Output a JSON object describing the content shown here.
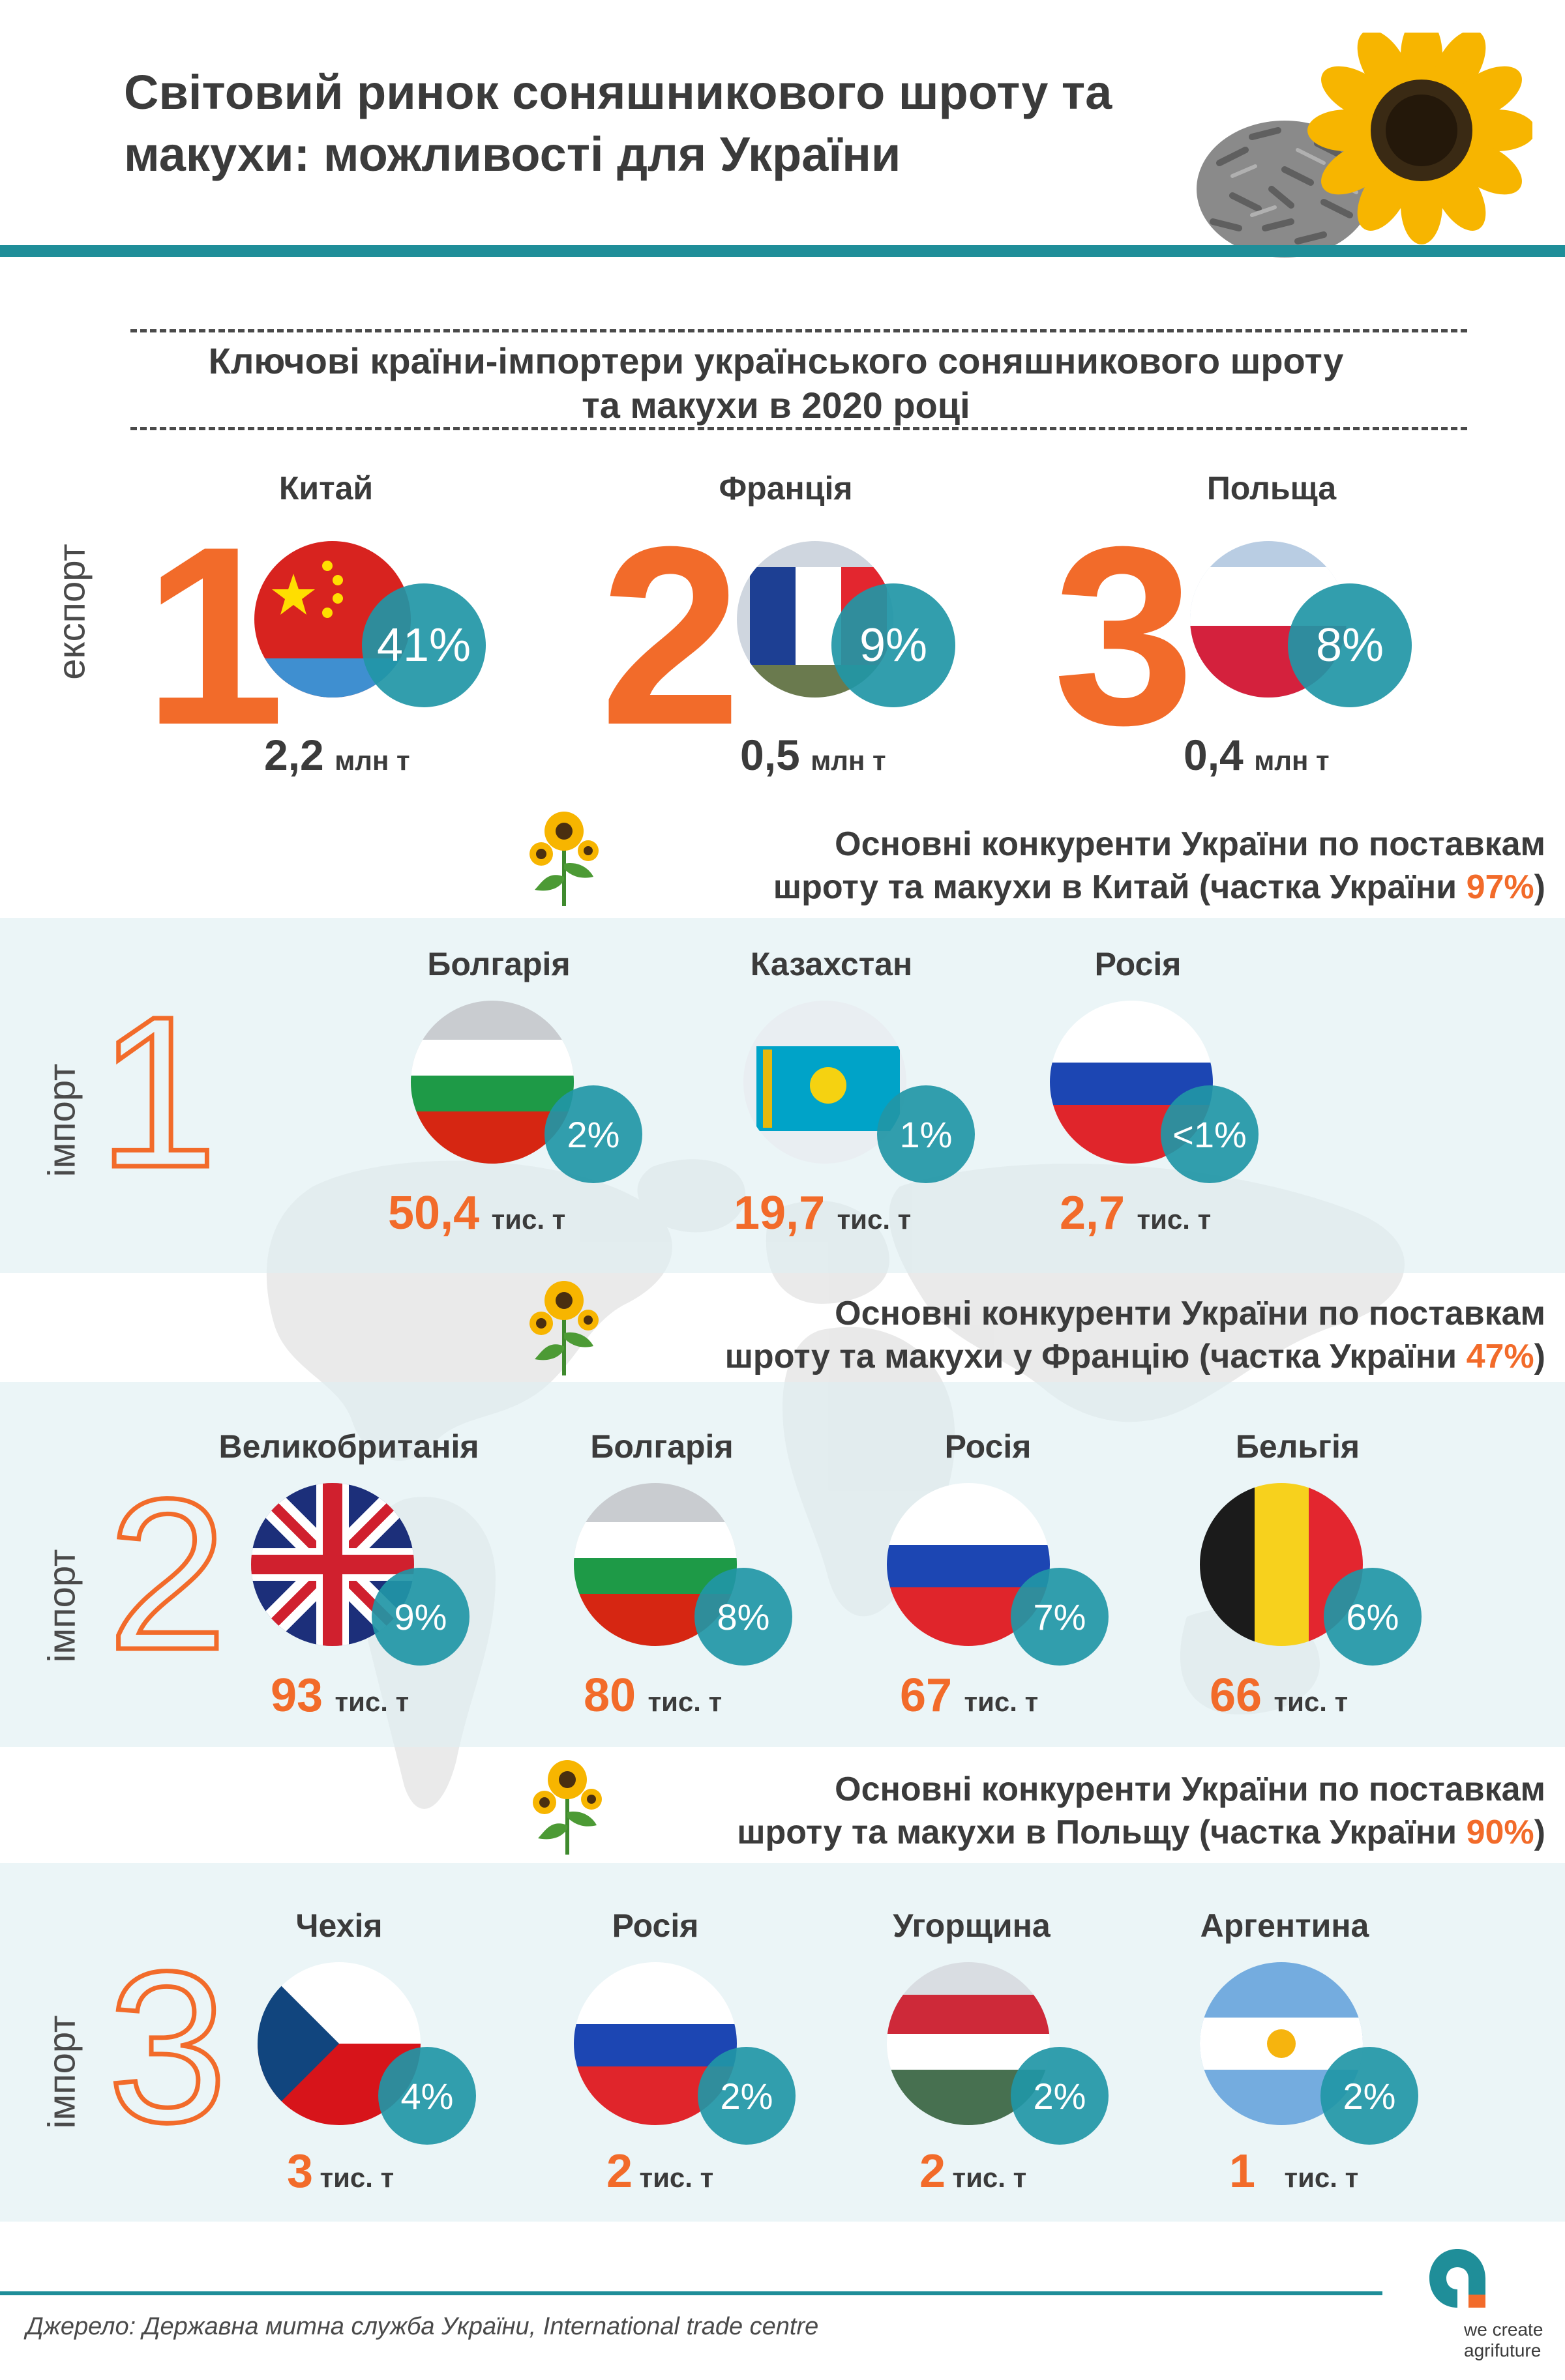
{
  "header": {
    "title_line1": "Світовий ринок соняшникового шроту та",
    "title_line2": "макухи: можливості для України"
  },
  "export_section": {
    "title_line1": "Ключові країни-імпортери українського соняшникового шроту",
    "title_line2": "та макухи в 2020 році",
    "side_label": "експорт",
    "items": [
      {
        "rank": "1",
        "country": "Китай",
        "share": "41%",
        "volume": "2,2",
        "unit": "млн т",
        "flag": "china-flag"
      },
      {
        "rank": "2",
        "country": "Франція",
        "share": "9%",
        "volume": "0,5",
        "unit": "млн т",
        "flag": "france-flag"
      },
      {
        "rank": "3",
        "country": "Польща",
        "share": "8%",
        "volume": "0,4",
        "unit": "млн т",
        "flag": "poland-flag"
      }
    ]
  },
  "import_sections": [
    {
      "rank": "1",
      "side_label": "імпорт",
      "heading_line1": "Основні конкуренти України по поставкам",
      "heading_line2_pre": "шроту та макухи в Китай (частка України ",
      "heading_share": "97%",
      "heading_line2_post": ")",
      "items": [
        {
          "country": "Болгарія",
          "share": "2%",
          "volume": "50,4",
          "unit": "тис. т",
          "flag": "bulgaria-flag"
        },
        {
          "country": "Казахстан",
          "share": "1%",
          "volume": "19,7",
          "unit": "тис. т",
          "flag": "kazakhstan-flag"
        },
        {
          "country": "Росія",
          "share": "<1%",
          "volume": "2,7",
          "unit": "тис. т",
          "flag": "russia-flag"
        }
      ]
    },
    {
      "rank": "2",
      "side_label": "імпорт",
      "heading_line1": "Основні конкуренти України по поставкам",
      "heading_line2_pre": "шроту та макухи у Францію (частка України ",
      "heading_share": "47%",
      "heading_line2_post": ")",
      "items": [
        {
          "country": "Великобританія",
          "share": "9%",
          "volume": "93",
          "unit": "тис. т",
          "flag": "uk-flag"
        },
        {
          "country": "Болгарія",
          "share": "8%",
          "volume": "80",
          "unit": "тис. т",
          "flag": "bulgaria-flag"
        },
        {
          "country": "Росія",
          "share": "7%",
          "volume": "67",
          "unit": "тис. т",
          "flag": "russia-flag"
        },
        {
          "country": "Бельгія",
          "share": "6%",
          "volume": "66",
          "unit": "тис. т",
          "flag": "belgium-flag"
        }
      ]
    },
    {
      "rank": "3",
      "side_label": "імпорт",
      "heading_line1": "Основні конкуренти України по поставкам",
      "heading_line2_pre": "шроту та макухи в Польщу (частка України ",
      "heading_share": "90%",
      "heading_line2_post": ")",
      "items": [
        {
          "country": "Чехія",
          "share": "4%",
          "volume": "3",
          "unit": "тис. т",
          "flag": "czech-flag"
        },
        {
          "country": "Росія",
          "share": "2%",
          "volume": "2",
          "unit": "тис. т",
          "flag": "russia-flag"
        },
        {
          "country": "Угорщина",
          "share": "2%",
          "volume": "2",
          "unit": "тис. т",
          "flag": "hungary-flag"
        },
        {
          "country": "Аргентина",
          "share": "2%",
          "volume": "1",
          "unit": "тис. т",
          "flag": "argentina-flag"
        }
      ]
    }
  ],
  "footer": {
    "source": "Джерело: Державна митна служба України, International trade centre",
    "logo_line1": "we create",
    "logo_line2": "agrifuture"
  },
  "colors": {
    "accent": "#f26b2a",
    "teal": "#1f8e99",
    "badge": "#2196a6"
  }
}
